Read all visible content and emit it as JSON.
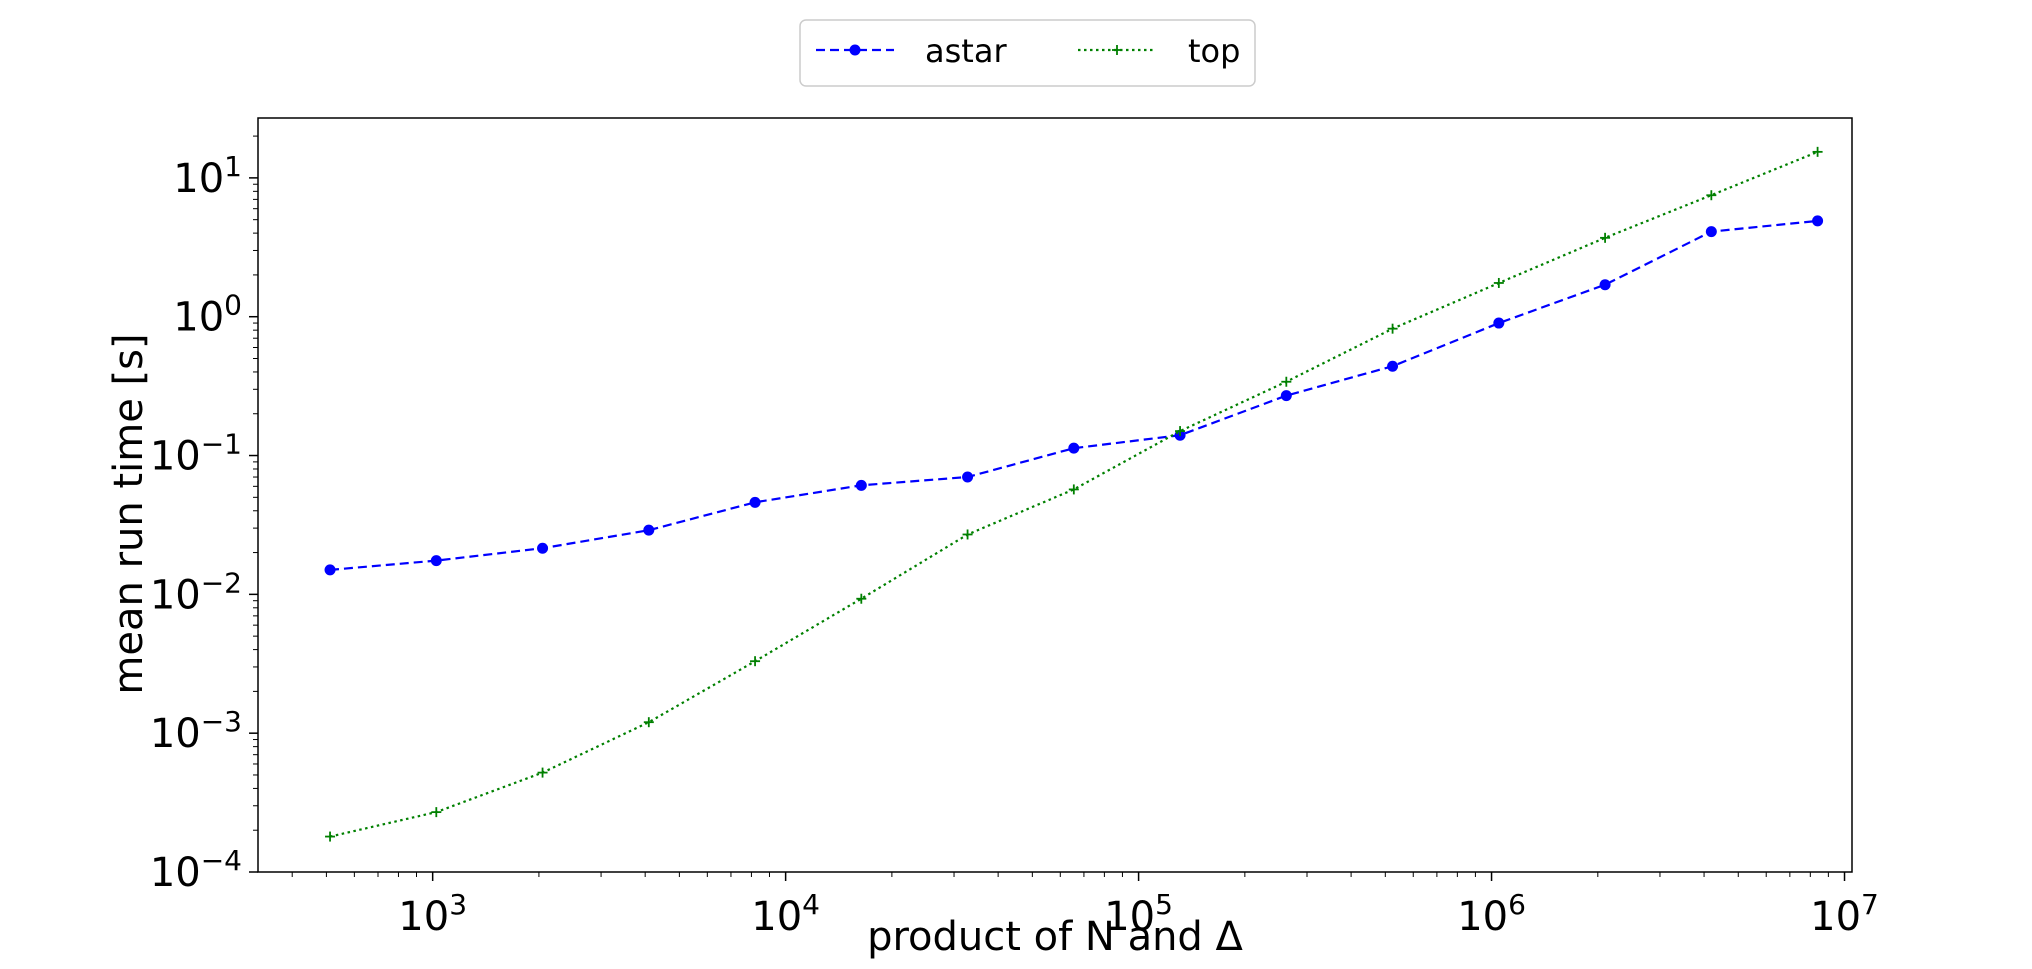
{
  "chart_data": {
    "type": "line",
    "xlabel": "product of N and Δ",
    "ylabel": "mean run time [s]",
    "xscale": "log",
    "yscale": "log",
    "xlim": [
      320,
      10500000
    ],
    "ylim": [
      0.0001,
      27
    ],
    "grid": false,
    "legend_position": "top-center, outside plot",
    "x_ticks": [
      {
        "base": "10",
        "exp": "3",
        "value": 1000
      },
      {
        "base": "10",
        "exp": "4",
        "value": 10000
      },
      {
        "base": "10",
        "exp": "5",
        "value": 100000
      },
      {
        "base": "10",
        "exp": "6",
        "value": 1000000
      },
      {
        "base": "10",
        "exp": "7",
        "value": 10000000
      }
    ],
    "y_ticks": [
      {
        "base": "10",
        "exp": "−4",
        "value": 0.0001
      },
      {
        "base": "10",
        "exp": "−3",
        "value": 0.001
      },
      {
        "base": "10",
        "exp": "−2",
        "value": 0.01
      },
      {
        "base": "10",
        "exp": "−1",
        "value": 0.1
      },
      {
        "base": "10",
        "exp": "0",
        "value": 1
      },
      {
        "base": "10",
        "exp": "1",
        "value": 10
      }
    ],
    "x": [
      512,
      1024,
      2048,
      4096,
      8192,
      16384,
      32768,
      65536,
      131072,
      262144,
      524288,
      1048576,
      2097152,
      4194304,
      8388608
    ],
    "series": [
      {
        "name": "astar",
        "color": "#0000ff",
        "line_style": "dashed",
        "marker": "circle",
        "values": [
          0.015,
          0.0175,
          0.0215,
          0.029,
          0.046,
          0.061,
          0.07,
          0.113,
          0.14,
          0.27,
          0.44,
          0.9,
          1.7,
          4.1,
          4.9
        ]
      },
      {
        "name": "top",
        "color": "#008000",
        "line_style": "dotted",
        "marker": "plus",
        "values": [
          0.00018,
          0.00027,
          0.00052,
          0.0012,
          0.0033,
          0.0093,
          0.027,
          0.057,
          0.15,
          0.34,
          0.82,
          1.75,
          3.7,
          7.5,
          15.4
        ]
      }
    ]
  }
}
